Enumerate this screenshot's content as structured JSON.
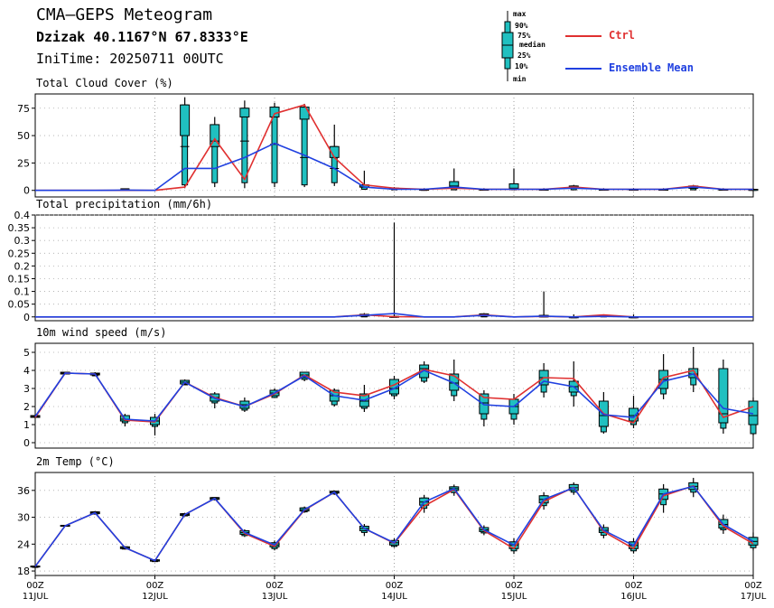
{
  "header": {
    "title": "CMA—GEPS Meteogram",
    "location": "Dzizak 40.1167°N 67.8333°E",
    "init_time": "IniTime: 20250711 00UTC"
  },
  "legend": {
    "box_labels": [
      "max",
      "90%",
      "75%",
      "median",
      "25%",
      "10%",
      "min"
    ],
    "ctrl_label": "Ctrl",
    "mean_label": "Ensemble Mean",
    "colors": {
      "ctrl": "#e03030",
      "mean": "#2040e0",
      "box": "#20c0c0"
    }
  },
  "chart_data": {
    "type": "line",
    "x_ticks": [
      {
        "top": "00Z",
        "bottom": "11JUL",
        "step": 0
      },
      {
        "top": "00Z",
        "bottom": "12JUL",
        "step": 4
      },
      {
        "top": "00Z",
        "bottom": "13JUL",
        "step": 8
      },
      {
        "top": "00Z",
        "bottom": "14JUL",
        "step": 12
      },
      {
        "top": "00Z",
        "bottom": "15JUL",
        "step": 16
      },
      {
        "top": "00Z",
        "bottom": "16JUL",
        "step": 20
      },
      {
        "top": "00Z",
        "bottom": "17JUL",
        "step": 24
      }
    ],
    "x_range": [
      0,
      24
    ],
    "panels": [
      {
        "title": "Total Cloud Cover (%)",
        "ylim": [
          -6,
          88
        ],
        "yticks": [
          0,
          25,
          50,
          75
        ],
        "ytick_labels": [
          "0",
          "25",
          "50",
          "75"
        ],
        "ctrl": [
          0,
          0,
          0,
          0,
          0,
          3,
          47,
          10,
          70,
          78,
          30,
          5,
          2,
          1,
          2,
          1,
          1,
          1,
          3,
          1,
          1,
          1,
          4,
          1,
          1
        ],
        "mean": [
          0,
          0,
          0,
          0.2,
          0,
          20,
          20,
          30,
          43,
          32,
          20,
          3,
          1,
          1,
          3,
          1,
          1,
          1,
          2,
          1,
          1,
          1,
          3,
          1,
          1
        ],
        "boxes": [
          [
            0,
            0,
            0,
            0,
            0,
            0
          ],
          [
            0,
            0,
            0,
            0,
            0,
            0
          ],
          [
            0,
            0,
            0,
            0,
            0,
            0
          ],
          [
            0,
            0,
            0.4,
            0.6,
            1,
            1.5
          ],
          [
            0,
            0,
            0,
            0,
            0,
            0
          ],
          [
            2,
            5,
            50,
            78,
            85,
            40
          ],
          [
            3,
            7,
            40,
            60,
            67,
            45
          ],
          [
            2,
            7,
            67,
            75,
            82,
            45
          ],
          [
            3,
            7,
            67,
            76,
            80,
            42
          ],
          [
            3,
            5,
            65,
            76,
            79,
            30
          ],
          [
            4,
            7,
            30,
            40,
            60,
            20
          ],
          [
            0.5,
            1,
            3,
            5,
            18,
            3
          ],
          [
            0.5,
            0.5,
            1,
            2,
            3,
            1
          ],
          [
            0,
            0,
            0.5,
            1,
            2,
            0.8
          ],
          [
            0.5,
            0.5,
            3,
            8,
            20,
            4
          ],
          [
            0.5,
            0.5,
            0.6,
            1,
            2,
            0.8
          ],
          [
            0.5,
            0.5,
            1,
            6,
            20,
            2
          ],
          [
            0.3,
            0.3,
            0.5,
            1,
            2,
            0.8
          ],
          [
            0.5,
            0.5,
            2,
            4,
            5,
            2
          ],
          [
            0.5,
            0.5,
            0.5,
            1,
            2,
            0.8
          ],
          [
            0.3,
            0.3,
            0.5,
            1,
            2,
            0.8
          ],
          [
            0.5,
            0.5,
            0.5,
            1,
            2,
            1
          ],
          [
            0.5,
            0.5,
            2,
            4,
            5,
            2
          ],
          [
            0.5,
            0.5,
            0.5,
            1,
            2,
            1
          ],
          [
            0,
            0,
            0,
            1,
            2,
            1
          ]
        ]
      },
      {
        "title": "Total precipitation (mm/6h)",
        "ylim": [
          -0.015,
          0.4
        ],
        "yticks": [
          0,
          0.05,
          0.1,
          0.15,
          0.2,
          0.25,
          0.3,
          0.35,
          0.4
        ],
        "ytick_labels": [
          "0",
          "0.05",
          "0.1",
          "0.15",
          "0.2",
          "0.25",
          "0.3",
          "0.35",
          "0.4"
        ],
        "ctrl": [
          0,
          0,
          0,
          0,
          0,
          0,
          0,
          0,
          0,
          0,
          0,
          0.008,
          0.001,
          0,
          0,
          0.008,
          0,
          0.002,
          0,
          0.008,
          0,
          0,
          0,
          0,
          0
        ],
        "mean": [
          0,
          0,
          0,
          0,
          0,
          0,
          0,
          0,
          0,
          0,
          0,
          0.006,
          0.013,
          0,
          0,
          0.006,
          0,
          0.003,
          0,
          0.002,
          0,
          0,
          0,
          0,
          0
        ],
        "boxes": [
          [
            0,
            0,
            0,
            0,
            0,
            0
          ],
          [
            0,
            0,
            0,
            0,
            0,
            0
          ],
          [
            0,
            0,
            0,
            0,
            0,
            0
          ],
          [
            0,
            0,
            0,
            0,
            0,
            0
          ],
          [
            0,
            0,
            0,
            0,
            0,
            0
          ],
          [
            0,
            0,
            0,
            0,
            0,
            0
          ],
          [
            0,
            0,
            0,
            0,
            0,
            0
          ],
          [
            0,
            0,
            0,
            0,
            0,
            0
          ],
          [
            0,
            0,
            0,
            0,
            0,
            0
          ],
          [
            0,
            0,
            0,
            0,
            0,
            0
          ],
          [
            0,
            0,
            0,
            0,
            0,
            0
          ],
          [
            0,
            0,
            0.003,
            0.01,
            0.015,
            0.006
          ],
          [
            0,
            0,
            0,
            0.002,
            0.37,
            0
          ],
          [
            0,
            0,
            0,
            0,
            0,
            0
          ],
          [
            0,
            0,
            0,
            0,
            0,
            0
          ],
          [
            0,
            0,
            0.003,
            0.012,
            0.015,
            0.008
          ],
          [
            0,
            0,
            0,
            0,
            0,
            0
          ],
          [
            0,
            0,
            0,
            0.006,
            0.1,
            0
          ],
          [
            0,
            0,
            0,
            0,
            0.01,
            0
          ],
          [
            0,
            0,
            0.002,
            0.006,
            0.01,
            0.003
          ],
          [
            0,
            0,
            0,
            0,
            0.01,
            0
          ],
          [
            0,
            0,
            0,
            0,
            0,
            0
          ],
          [
            0,
            0,
            0,
            0,
            0,
            0
          ],
          [
            0,
            0,
            0,
            0,
            0,
            0
          ],
          [
            0,
            0,
            0,
            0,
            0,
            0
          ]
        ]
      },
      {
        "title": "10m wind speed (m/s)",
        "ylim": [
          -0.3,
          5.5
        ],
        "yticks": [
          0,
          1,
          2,
          3,
          4,
          5
        ],
        "ytick_labels": [
          "0",
          "1",
          "2",
          "3",
          "4",
          "5"
        ],
        "ctrl": [
          1.4,
          3.85,
          3.8,
          1.25,
          1.15,
          3.35,
          2.5,
          2.0,
          2.7,
          3.75,
          2.8,
          2.6,
          3.2,
          4.05,
          3.7,
          2.5,
          2.4,
          3.6,
          3.55,
          1.6,
          1.1,
          3.6,
          4.0,
          1.4,
          2.0
        ],
        "mean": [
          1.45,
          3.85,
          3.8,
          1.3,
          1.2,
          3.35,
          2.45,
          2.0,
          2.75,
          3.7,
          2.6,
          2.35,
          3.0,
          4.0,
          3.3,
          2.1,
          2.0,
          3.4,
          3.1,
          1.55,
          1.4,
          3.4,
          3.8,
          1.9,
          1.6
        ],
        "boxes": [
          [
            1.4,
            1.4,
            1.4,
            1.5,
            1.5,
            1.45
          ],
          [
            3.8,
            3.8,
            3.8,
            3.9,
            3.9,
            3.85
          ],
          [
            3.7,
            3.7,
            3.75,
            3.85,
            3.9,
            3.8
          ],
          [
            0.9,
            1.1,
            1.2,
            1.5,
            1.6,
            1.3
          ],
          [
            0.4,
            0.9,
            1.0,
            1.4,
            1.6,
            1.2
          ],
          [
            3.2,
            3.2,
            3.25,
            3.45,
            3.5,
            3.35
          ],
          [
            1.9,
            2.2,
            2.3,
            2.7,
            2.8,
            2.5
          ],
          [
            1.7,
            1.8,
            1.9,
            2.3,
            2.5,
            2.1
          ],
          [
            2.5,
            2.5,
            2.6,
            2.9,
            3.0,
            2.75
          ],
          [
            3.4,
            3.5,
            3.6,
            3.9,
            3.9,
            3.75
          ],
          [
            2.0,
            2.1,
            2.3,
            2.9,
            3.0,
            2.6
          ],
          [
            1.7,
            1.9,
            2.0,
            2.7,
            3.2,
            2.3
          ],
          [
            2.4,
            2.6,
            2.7,
            3.5,
            3.7,
            3.0
          ],
          [
            3.3,
            3.4,
            3.6,
            4.3,
            4.5,
            4.1
          ],
          [
            2.3,
            2.6,
            2.9,
            3.8,
            4.6,
            3.3
          ],
          [
            0.9,
            1.3,
            1.6,
            2.7,
            2.9,
            2.2
          ],
          [
            1.0,
            1.3,
            1.6,
            2.4,
            2.7,
            2.0
          ],
          [
            2.5,
            2.8,
            3.2,
            4.0,
            4.4,
            3.6
          ],
          [
            2.0,
            2.6,
            2.8,
            3.4,
            4.5,
            3.1
          ],
          [
            0.5,
            0.6,
            0.9,
            2.3,
            2.8,
            1.5
          ],
          [
            0.8,
            1.0,
            1.2,
            1.9,
            2.6,
            1.5
          ],
          [
            2.4,
            2.7,
            3.0,
            4.0,
            4.9,
            3.5
          ],
          [
            2.8,
            3.2,
            3.6,
            4.1,
            5.3,
            3.8
          ],
          [
            0.5,
            0.8,
            1.1,
            4.1,
            4.6,
            1.6
          ],
          [
            0.4,
            0.5,
            1.0,
            2.3,
            2.5,
            1.5
          ]
        ]
      },
      {
        "title": "2m Temp (°C)",
        "ylim": [
          17,
          40
        ],
        "yticks": [
          18,
          24,
          30,
          36
        ],
        "ytick_labels": [
          "18",
          "24",
          "30",
          "36"
        ],
        "ctrl": [
          19.0,
          28.1,
          31.0,
          23.2,
          20.3,
          30.6,
          34.2,
          26.4,
          23.5,
          31.6,
          35.6,
          27.5,
          24.2,
          32.5,
          36.2,
          27.0,
          23.0,
          33.5,
          36.7,
          26.8,
          23.0,
          34.8,
          37.0,
          28.0,
          24.1
        ],
        "mean": [
          19.0,
          28.1,
          31.0,
          23.2,
          20.3,
          30.6,
          34.2,
          26.6,
          23.8,
          31.7,
          35.6,
          27.5,
          24.3,
          33.4,
          36.4,
          27.2,
          23.8,
          34.0,
          36.6,
          27.1,
          23.7,
          35.2,
          36.9,
          28.4,
          24.6
        ],
        "boxes": [
          [
            18.8,
            18.8,
            18.9,
            19.1,
            19.2,
            19.0
          ],
          [
            27.9,
            28.0,
            28.0,
            28.2,
            28.3,
            28.1
          ],
          [
            30.6,
            30.7,
            30.8,
            31.2,
            31.4,
            31.0
          ],
          [
            22.8,
            22.9,
            23.0,
            23.4,
            23.5,
            23.2
          ],
          [
            20.0,
            20.1,
            20.2,
            20.5,
            20.6,
            20.3
          ],
          [
            30.2,
            30.3,
            30.4,
            30.8,
            31.0,
            30.6
          ],
          [
            33.8,
            33.9,
            34.0,
            34.4,
            34.5,
            34.2
          ],
          [
            25.6,
            25.9,
            26.2,
            27.0,
            27.3,
            26.6
          ],
          [
            22.6,
            23.0,
            23.4,
            24.3,
            24.8,
            23.8
          ],
          [
            31.0,
            31.2,
            31.4,
            32.1,
            32.4,
            31.7
          ],
          [
            35.0,
            35.2,
            35.4,
            35.8,
            36.0,
            35.6
          ],
          [
            25.8,
            26.6,
            27.0,
            28.0,
            28.5,
            27.5
          ],
          [
            23.2,
            23.5,
            23.8,
            24.8,
            25.3,
            24.3
          ],
          [
            31.0,
            32.0,
            32.7,
            34.3,
            35.0,
            33.4
          ],
          [
            34.8,
            35.5,
            36.0,
            36.8,
            37.3,
            36.4
          ],
          [
            26.0,
            26.5,
            26.8,
            27.7,
            28.2,
            27.2
          ],
          [
            21.8,
            22.5,
            23.0,
            24.5,
            25.3,
            23.8
          ],
          [
            31.7,
            32.6,
            33.2,
            34.8,
            35.6,
            34.0
          ],
          [
            35.0,
            35.6,
            36.0,
            37.3,
            37.8,
            36.6
          ],
          [
            25.3,
            26.0,
            26.6,
            27.7,
            28.4,
            27.1
          ],
          [
            21.9,
            22.5,
            23.0,
            24.5,
            25.3,
            23.7
          ],
          [
            31.0,
            32.8,
            34.0,
            36.3,
            37.4,
            35.2
          ],
          [
            34.5,
            35.6,
            36.2,
            37.7,
            38.8,
            36.9
          ],
          [
            26.3,
            27.2,
            27.6,
            29.5,
            30.6,
            28.4
          ],
          [
            22.6,
            23.2,
            23.8,
            25.5,
            26.6,
            24.6
          ]
        ]
      }
    ]
  }
}
